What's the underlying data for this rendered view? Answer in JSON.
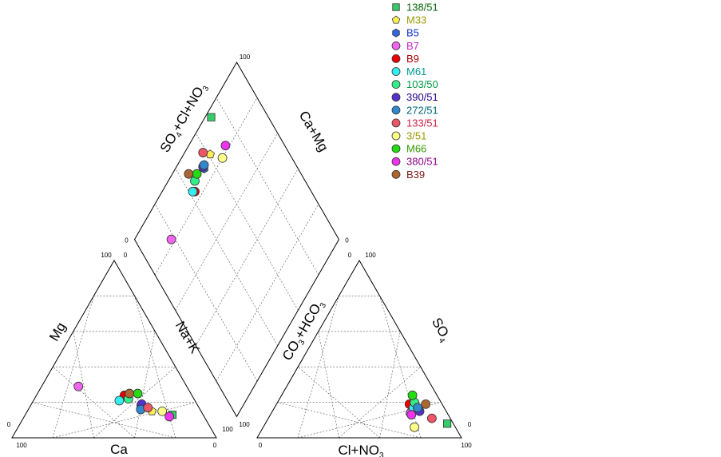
{
  "chart_data": {
    "type": "scatter",
    "subtype": "piper-diagram",
    "tick_labels": {
      "tick_100": "100",
      "tick_0": "0"
    },
    "axis_labels": {
      "cation_left": "Mg",
      "cation_right": "Na+K",
      "cation_bottom": "Ca",
      "anion_left": "CO3+HCO3",
      "anion_right": "SO4",
      "anion_bottom": "Cl+NO3",
      "diamond_left": "SO4+Cl+NO3",
      "diamond_right": "Ca+Mg"
    },
    "legend_position": "top-right",
    "series": [
      {
        "name": "138/51",
        "marker": "square",
        "color": "#33cc66",
        "text_color": "#006600",
        "cations": {
          "Ca": 15,
          "Mg": 13,
          "NaK": 72
        },
        "anions": {
          "Cl": 89,
          "SO4": 8
        }
      },
      {
        "name": "M33",
        "marker": "pentagon",
        "color": "#ffee55",
        "text_color": "#999900",
        "cations": {
          "Ca": 24,
          "Mg": 15,
          "NaK": 61
        },
        "anions": {
          "Cl": 71,
          "SO4": 16
        }
      },
      {
        "name": "B5",
        "marker": "hexagon",
        "color": "#3366dd",
        "text_color": "#1133cc",
        "cations": {
          "Ca": 28,
          "Mg": 18,
          "NaK": 54
        },
        "anions": {
          "Cl": 70,
          "SO4": 16
        }
      },
      {
        "name": "B7",
        "marker": "circle",
        "color": "#ee66ee",
        "text_color": "#cc22cc",
        "cations": {
          "Ca": 53,
          "Mg": 29,
          "NaK": 18
        },
        "anions": {
          "Cl": 68,
          "SO4": 14
        }
      },
      {
        "name": "B9",
        "marker": "circle",
        "color": "#ee0000",
        "text_color": "#aa0000",
        "cations": {
          "Ca": 33,
          "Mg": 24,
          "NaK": 43
        },
        "anions": {
          "Cl": 65,
          "SO4": 19
        }
      },
      {
        "name": "M61",
        "marker": "circle",
        "color": "#33eeee",
        "text_color": "#009999",
        "cations": {
          "Ca": 37,
          "Mg": 21,
          "NaK": 42
        },
        "anions": {
          "Cl": 68,
          "SO4": 17
        }
      },
      {
        "name": "103/50",
        "marker": "circle",
        "color": "#33ee88",
        "text_color": "#009944",
        "cations": {
          "Ca": 32,
          "Mg": 22,
          "NaK": 46
        },
        "anions": {
          "Cl": 67,
          "SO4": 20
        }
      },
      {
        "name": "390/51",
        "marker": "circle",
        "color": "#5533cc",
        "text_color": "#220088",
        "cations": {
          "Ca": 27,
          "Mg": 19,
          "NaK": 54
        },
        "anions": {
          "Cl": 72,
          "SO4": 15
        }
      },
      {
        "name": "272/51",
        "marker": "circle",
        "color": "#3388cc",
        "text_color": "#006677",
        "cations": {
          "Ca": 29,
          "Mg": 16,
          "NaK": 55
        },
        "anions": {
          "Cl": 70,
          "SO4": 17
        }
      },
      {
        "name": "133/51",
        "marker": "circle",
        "color": "#ee5566",
        "text_color": "#cc2244",
        "cations": {
          "Ca": 25,
          "Mg": 17,
          "NaK": 58
        },
        "anions": {
          "Cl": 80,
          "SO4": 11
        }
      },
      {
        "name": "3/51",
        "marker": "circle",
        "color": "#ffff88",
        "text_color": "#999900",
        "cations": {
          "Ca": 19,
          "Mg": 15,
          "NaK": 66
        },
        "anions": {
          "Cl": 74,
          "SO4": 6
        }
      },
      {
        "name": "M66",
        "marker": "circle",
        "color": "#22dd11",
        "text_color": "#339900",
        "cations": {
          "Ca": 26,
          "Mg": 25,
          "NaK": 49
        },
        "anions": {
          "Cl": 64,
          "SO4": 24
        }
      },
      {
        "name": "380/51",
        "marker": "circle",
        "color": "#ee33ee",
        "text_color": "#880088",
        "cations": {
          "Ca": 17,
          "Mg": 12,
          "NaK": 71
        },
        "anions": {
          "Cl": 69,
          "SO4": 13
        }
      },
      {
        "name": "B39",
        "marker": "circle",
        "color": "#aa6633",
        "text_color": "#7a1a1a",
        "cations": {
          "Ca": 30,
          "Mg": 25,
          "NaK": 45
        },
        "anions": {
          "Cl": 73,
          "SO4": 19
        }
      }
    ]
  }
}
